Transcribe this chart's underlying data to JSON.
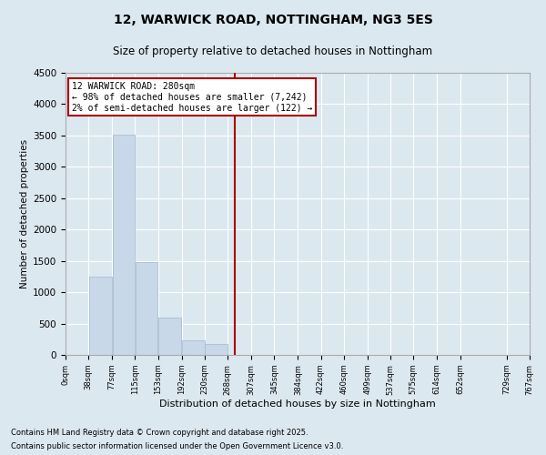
{
  "title": "12, WARWICK ROAD, NOTTINGHAM, NG3 5ES",
  "subtitle": "Size of property relative to detached houses in Nottingham",
  "xlabel": "Distribution of detached houses by size in Nottingham",
  "ylabel": "Number of detached properties",
  "bar_color": "#c8d8e8",
  "bar_edge_color": "#a0b8cc",
  "vline_x": 280,
  "vline_color": "#aa0000",
  "annotation_line1": "12 WARWICK ROAD: 280sqm",
  "annotation_line2": "← 98% of detached houses are smaller (7,242)",
  "annotation_line3": "2% of semi-detached houses are larger (122) →",
  "annotation_box_color": "#aa0000",
  "annotation_box_fill": "#ffffff",
  "footer_line1": "Contains HM Land Registry data © Crown copyright and database right 2025.",
  "footer_line2": "Contains public sector information licensed under the Open Government Licence v3.0.",
  "background_color": "#dce8f0",
  "plot_bg_color": "#dce8f0",
  "bin_edges": [
    0,
    38,
    77,
    115,
    153,
    192,
    230,
    268,
    307,
    345,
    384,
    422,
    460,
    499,
    537,
    575,
    614,
    652,
    729,
    767
  ],
  "bar_heights": [
    0,
    1250,
    3520,
    1480,
    590,
    230,
    170,
    0,
    0,
    0,
    0,
    0,
    0,
    0,
    0,
    0,
    0,
    0,
    0
  ],
  "ylim": [
    0,
    4500
  ],
  "xlim": [
    0,
    767
  ],
  "tick_labels": [
    "0sqm",
    "38sqm",
    "77sqm",
    "115sqm",
    "153sqm",
    "192sqm",
    "230sqm",
    "268sqm",
    "307sqm",
    "345sqm",
    "384sqm",
    "422sqm",
    "460sqm",
    "499sqm",
    "537sqm",
    "575sqm",
    "614sqm",
    "652sqm",
    "729sqm",
    "767sqm"
  ],
  "ytick_values": [
    0,
    500,
    1000,
    1500,
    2000,
    2500,
    3000,
    3500,
    4000,
    4500
  ]
}
